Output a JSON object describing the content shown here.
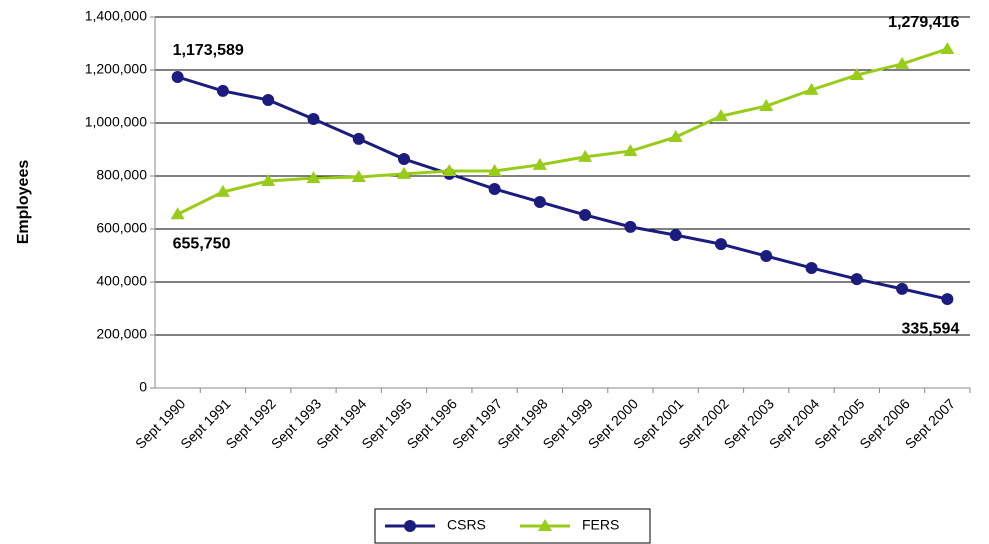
{
  "chart_data": {
    "type": "line",
    "y_label": "Employees",
    "categories": [
      "Sept 1990",
      "Sept 1991",
      "Sept 1992",
      "Sept 1993",
      "Sept 1994",
      "Sept 1995",
      "Sept 1996",
      "Sept 1997",
      "Sept 1998",
      "Sept 1999",
      "Sept 2000",
      "Sept 2001",
      "Sept 2002",
      "Sept 2003",
      "Sept 2004",
      "Sept 2005",
      "Sept 2006",
      "Sept 2007"
    ],
    "series": [
      {
        "name": "CSRS",
        "color": "#1c1c7f",
        "marker": "circle",
        "values": [
          1173589,
          1121000,
          1087000,
          1015000,
          940000,
          864000,
          808000,
          751000,
          702000,
          653000,
          608000,
          577000,
          543000,
          498000,
          453000,
          411000,
          374000,
          335594
        ],
        "value_labels": [
          "1,173,589",
          null,
          null,
          null,
          null,
          null,
          null,
          null,
          null,
          null,
          null,
          null,
          null,
          null,
          null,
          null,
          null,
          "335,594"
        ]
      },
      {
        "name": "FERS",
        "color": "#99cc1a",
        "marker": "triangle",
        "values": [
          655750,
          740000,
          781000,
          792000,
          796000,
          808000,
          819000,
          819000,
          842000,
          872000,
          894000,
          947000,
          1026000,
          1064000,
          1125000,
          1181000,
          1223000,
          1279416
        ],
        "value_labels": [
          "655,750",
          null,
          null,
          null,
          null,
          null,
          null,
          null,
          null,
          null,
          null,
          null,
          null,
          null,
          null,
          null,
          null,
          "1,279,416"
        ]
      }
    ],
    "ylim": [
      0,
      1400000
    ],
    "yticks": [
      0,
      {
        "value": 200000,
        "label": "200,000"
      },
      {
        "value": 400000,
        "label": "400,000"
      },
      {
        "value": 600000,
        "label": "600,000"
      },
      {
        "value": 800000,
        "label": "800,000"
      },
      {
        "value": 1000000,
        "label": "1,000,000"
      },
      {
        "value": 1200000,
        "label": "1,200,000"
      },
      {
        "value": 1400000,
        "label": "1,400,000"
      }
    ],
    "grid": true,
    "legend": "bottom"
  }
}
